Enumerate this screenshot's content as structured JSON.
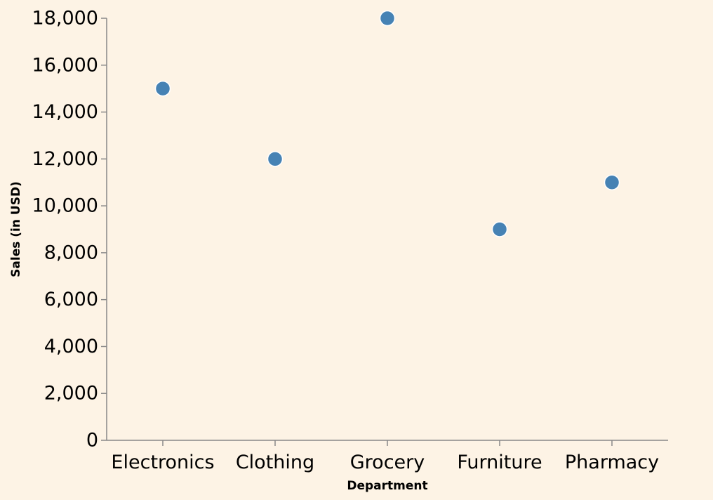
{
  "chart_data": {
    "type": "scatter",
    "categories": [
      "Electronics",
      "Clothing",
      "Grocery",
      "Furniture",
      "Pharmacy"
    ],
    "values": [
      15000,
      12000,
      18000,
      9000,
      11000
    ],
    "xlabel": "Department",
    "ylabel": "Sales (in USD)",
    "ylim": [
      0,
      18000
    ],
    "y_ticks": [
      0,
      2000,
      4000,
      6000,
      8000,
      10000,
      12000,
      14000,
      16000,
      18000
    ],
    "y_tick_labels": [
      "0",
      "2,000",
      "4,000",
      "6,000",
      "8,000",
      "10,000",
      "12,000",
      "14,000",
      "16,000",
      "18,000"
    ],
    "grid": false,
    "colors": {
      "background": "#fdf3e5",
      "point": "#4682b4",
      "axis": "#888888"
    }
  }
}
